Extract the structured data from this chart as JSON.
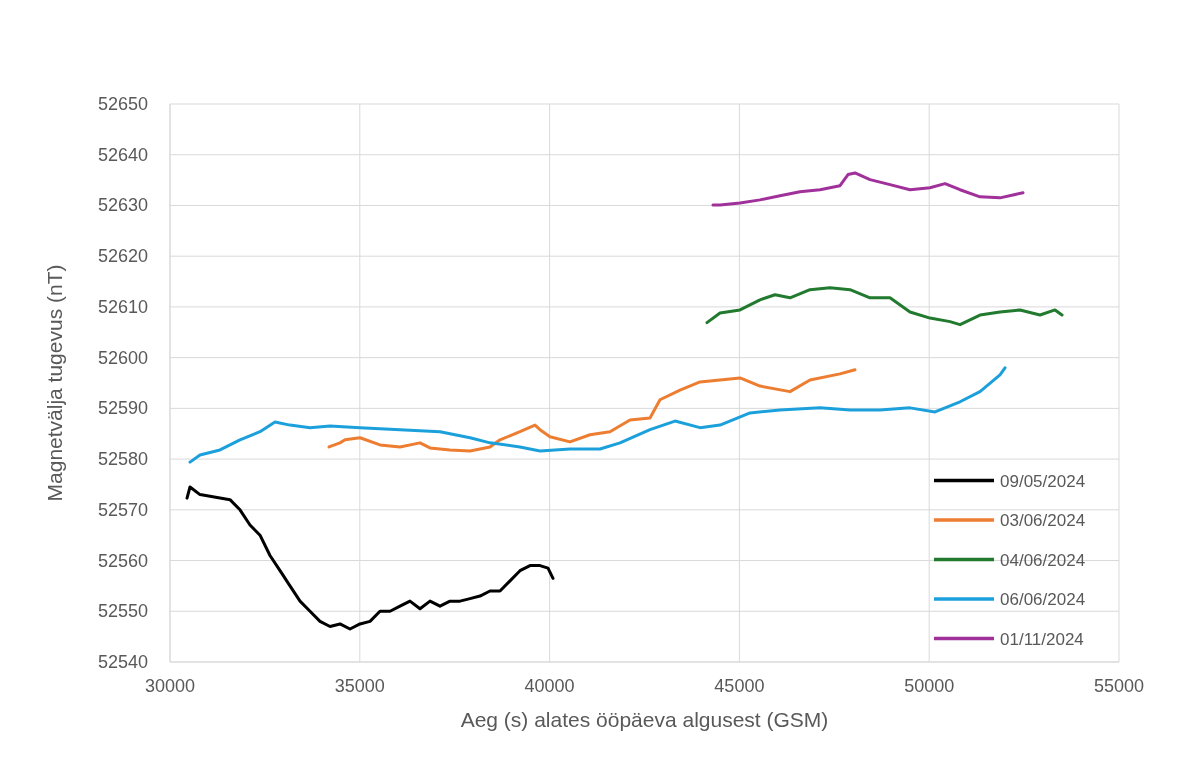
{
  "chart_data": {
    "type": "line",
    "xlabel": "Aeg (s) alates ööpäeva algusest (GSM)",
    "ylabel": "Magnetvälja tugevus (nT)",
    "xlim": [
      30000,
      55000
    ],
    "xticks": [
      30000,
      35000,
      40000,
      45000,
      50000,
      55000
    ],
    "ylim": [
      52540,
      52650
    ],
    "yticks": [
      52540,
      52550,
      52560,
      52570,
      52580,
      52590,
      52600,
      52610,
      52620,
      52630,
      52640,
      52650
    ],
    "grid": true,
    "legend": "bottom right",
    "line_style": "solid",
    "series": [
      {
        "name": "09/05/2024",
        "color": "#000000",
        "x": [
          30448,
          30527,
          30790,
          31580,
          31844,
          32107,
          32371,
          32634,
          32898,
          33161,
          33425,
          33688,
          33952,
          34215,
          34478,
          34742,
          35005,
          35269,
          35532,
          35796,
          36059,
          36322,
          36586,
          36849,
          37113,
          37376,
          37640,
          37903,
          38166,
          38430,
          38693,
          38957,
          39220,
          39484,
          39747,
          39958,
          40090
        ],
        "values": [
          52572.3,
          52574.5,
          52573,
          52572,
          52570,
          52567,
          52565,
          52561,
          52558,
          52555,
          52552,
          52550,
          52548,
          52547,
          52547.5,
          52546.5,
          52547.5,
          52548,
          52550,
          52550,
          52551,
          52552,
          52550.5,
          52552,
          52551,
          52552,
          52552,
          52552.5,
          52553,
          52554,
          52554,
          52556,
          52558,
          52559,
          52559,
          52558.5,
          52556.5
        ]
      },
      {
        "name": "03/06/2024",
        "color": "#ed7d31",
        "x": [
          34189,
          34478,
          34610,
          35005,
          35532,
          36059,
          36586,
          36849,
          37376,
          37903,
          38430,
          38693,
          39220,
          39615,
          39747,
          40010,
          40537,
          41064,
          41591,
          42118,
          42645,
          42908,
          43435,
          43962,
          44489,
          45016,
          45543,
          46333,
          46860,
          47650,
          48045
        ],
        "values": [
          52582.4,
          52583.2,
          52583.8,
          52584.2,
          52582.8,
          52582.4,
          52583.2,
          52582.2,
          52581.8,
          52581.6,
          52582.4,
          52583.8,
          52585.4,
          52586.7,
          52585.8,
          52584.4,
          52583.4,
          52584.8,
          52585.4,
          52587.7,
          52588.1,
          52591.7,
          52593.6,
          52595.2,
          52595.6,
          52596,
          52594.4,
          52593.3,
          52595.6,
          52596.8,
          52597.6
        ]
      },
      {
        "name": "04/06/2024",
        "color": "#217a2e",
        "x": [
          44146,
          44489,
          45016,
          45543,
          45938,
          46333,
          46860,
          47387,
          47914,
          48441,
          48967,
          49494,
          50021,
          50548,
          50812,
          51338,
          51865,
          52392,
          52919,
          53314,
          53498
        ],
        "values": [
          52606.9,
          52608.8,
          52609.4,
          52611.4,
          52612.4,
          52611.8,
          52613.4,
          52613.8,
          52613.4,
          52611.8,
          52611.8,
          52609,
          52607.8,
          52607.1,
          52606.5,
          52608.4,
          52609,
          52609.4,
          52608.4,
          52609.4,
          52608.4
        ]
      },
      {
        "name": "06/06/2024",
        "color": "#1ca0dc",
        "x": [
          30527,
          30790,
          31317,
          31844,
          32371,
          32766,
          33161,
          33688,
          34215,
          35005,
          36059,
          37113,
          37903,
          38430,
          39220,
          39747,
          40537,
          41328,
          41855,
          42645,
          43304,
          43962,
          44489,
          45279,
          46070,
          47124,
          47914,
          48704,
          49494,
          50153,
          50812,
          51338,
          51865,
          51997
        ],
        "values": [
          52579.4,
          52580.8,
          52581.8,
          52583.8,
          52585.4,
          52587.3,
          52586.7,
          52586.2,
          52586.5,
          52586.2,
          52585.8,
          52585.4,
          52584.2,
          52583.2,
          52582.4,
          52581.6,
          52582,
          52582,
          52583.2,
          52585.8,
          52587.5,
          52586.2,
          52586.7,
          52589.1,
          52589.7,
          52590.1,
          52589.7,
          52589.7,
          52590.1,
          52589.3,
          52591.3,
          52593.3,
          52596.6,
          52598
        ]
      },
      {
        "name": "01/11/2024",
        "color": "#a0309a",
        "x": [
          44304,
          44489,
          45016,
          45543,
          46070,
          46596,
          47123,
          47650,
          47861,
          48045,
          48441,
          48967,
          49494,
          50021,
          50416,
          50812,
          51338,
          51865,
          52471
        ],
        "values": [
          52630.1,
          52630.1,
          52630.5,
          52631.1,
          52631.9,
          52632.7,
          52633.1,
          52633.9,
          52636.1,
          52636.4,
          52635.1,
          52634.1,
          52633.1,
          52633.5,
          52634.3,
          52633.1,
          52631.7,
          52631.5,
          52632.5
        ]
      }
    ]
  }
}
